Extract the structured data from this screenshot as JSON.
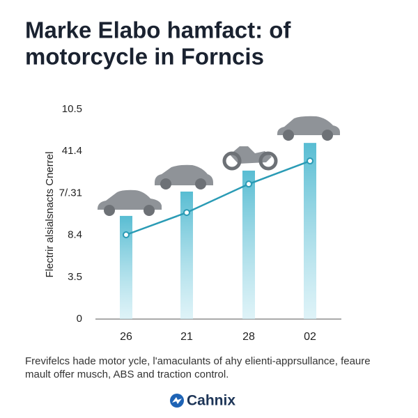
{
  "chart_data": {
    "type": "bar_line",
    "title": [
      "Marke Elabo hamfact: of",
      "motorcycle in Forncis"
    ],
    "y_label": "Flectrir alsialsnacts Cnerrel",
    "y_tick_labels": [
      "0",
      "3.5",
      "8.4",
      "7/.31",
      "41.4",
      "10.5"
    ],
    "ylim": [
      0,
      5
    ],
    "categories": [
      "26",
      "21",
      "28",
      "02"
    ],
    "series": [
      {
        "kind": "bar",
        "color": "#5bbfd4",
        "values": [
          2.46,
          3.04,
          3.54,
          4.2
        ]
      },
      {
        "kind": "line",
        "color": "#2a9bb5",
        "values": [
          2.01,
          2.54,
          3.22,
          3.77
        ]
      }
    ],
    "footnote": [
      "Frevifelcs hade motor ycle, l'amaculants of ahy elienti-apprsullance, feaure",
      "mault offer musch, ABS and traction control."
    ],
    "logo": "Cahnix"
  }
}
